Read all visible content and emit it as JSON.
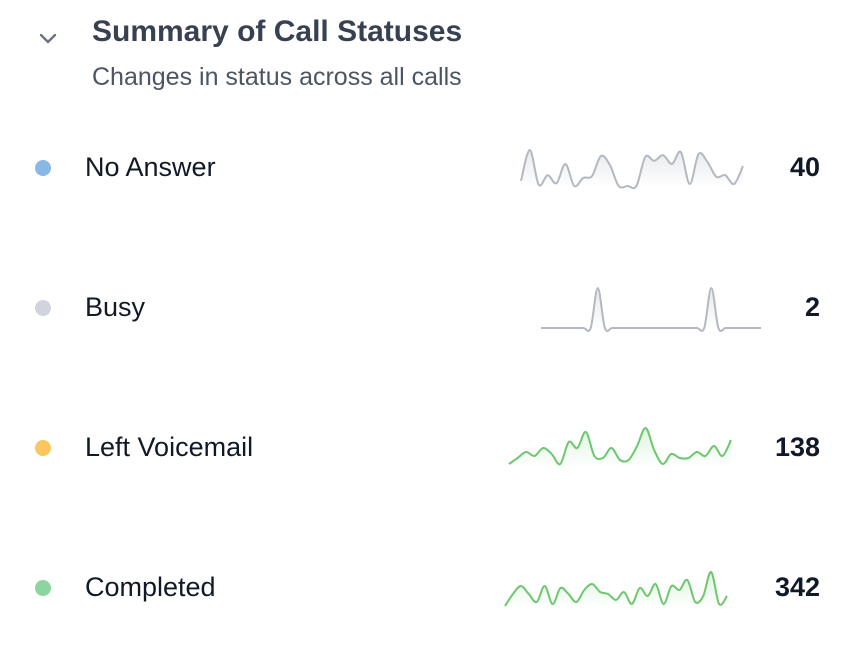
{
  "section": {
    "title": "Summary of Call Statuses",
    "subtitle": "Changes in status across all calls",
    "collapse_icon": "chevron-down-icon"
  },
  "statuses": [
    {
      "label": "No Answer",
      "count": "40",
      "dot_color": "#8ab8e6",
      "line_color": "#b4b8bf",
      "fill_color": "#e5e7eb",
      "trend": [
        0.18,
        0.95,
        0.08,
        0.32,
        0.12,
        0.6,
        0.05,
        0.25,
        0.3,
        0.8,
        0.58,
        0.05,
        0.05,
        0.05,
        0.78,
        0.68,
        0.82,
        0.6,
        0.9,
        0.1,
        0.85,
        0.65,
        0.28,
        0.32,
        0.1,
        0.55
      ]
    },
    {
      "label": "Busy",
      "count": "2",
      "dot_color": "#d1d5db",
      "line_color": "#b4b8bf",
      "fill_color": "#e5e7eb",
      "trend": [
        0,
        0,
        0,
        0,
        0,
        0,
        0,
        0,
        1,
        0,
        0,
        0,
        0,
        0,
        0,
        0,
        0,
        0,
        0,
        0,
        0,
        0,
        0,
        0,
        1,
        0,
        0,
        0,
        0,
        0,
        0,
        0
      ]
    },
    {
      "label": "Left Voicemail",
      "count": "138",
      "dot_color": "#fcc65e",
      "line_color": "#6cc76e",
      "fill_color": "#daf2db",
      "trend": [
        0.1,
        0.25,
        0.4,
        0.3,
        0.5,
        0.35,
        0.1,
        0.65,
        0.5,
        0.9,
        0.3,
        0.25,
        0.5,
        0.2,
        0.2,
        0.55,
        1.0,
        0.45,
        0.1,
        0.35,
        0.25,
        0.25,
        0.4,
        0.3,
        0.55,
        0.3,
        0.7
      ]
    },
    {
      "label": "Completed",
      "count": "342",
      "dot_color": "#8ed49e",
      "line_color": "#6cc76e",
      "fill_color": "#daf2db",
      "trend": [
        0.05,
        0.35,
        0.55,
        0.35,
        0.15,
        0.55,
        0.1,
        0.5,
        0.35,
        0.15,
        0.45,
        0.6,
        0.4,
        0.35,
        0.2,
        0.4,
        0.1,
        0.5,
        0.3,
        0.6,
        0.1,
        0.55,
        0.45,
        0.7,
        0.15,
        0.3,
        0.9,
        0.1,
        0.3
      ]
    }
  ]
}
